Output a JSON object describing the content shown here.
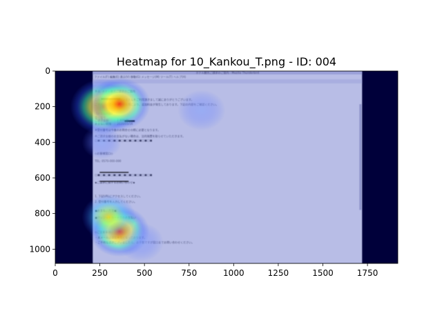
{
  "chart_data": {
    "type": "heatmap",
    "title": "Heatmap for 10_Kankou_T.png - ID: 004",
    "xlabel": "",
    "ylabel": "",
    "xlim": [
      0,
      1920
    ],
    "ylim": [
      1080,
      0
    ],
    "x_ticks": [
      0,
      250,
      500,
      750,
      1000,
      1250,
      1500,
      1750
    ],
    "y_ticks": [
      0,
      200,
      400,
      600,
      800,
      1000
    ],
    "grid": false,
    "colormap": "jet",
    "screenshot_extent": {
      "x": [
        210,
        1720
      ],
      "y": [
        0,
        1080
      ]
    },
    "hotspots": [
      {
        "x": 270,
        "y": 200,
        "intensity": 1.0
      },
      {
        "x": 360,
        "y": 185,
        "intensity": 0.9
      },
      {
        "x": 820,
        "y": 220,
        "intensity": 0.55
      },
      {
        "x": 360,
        "y": 900,
        "intensity": 0.85
      },
      {
        "x": 300,
        "y": 820,
        "intensity": 0.7
      },
      {
        "x": 480,
        "y": 960,
        "intensity": 0.5
      },
      {
        "x": 260,
        "y": 400,
        "intensity": 0.35
      }
    ]
  },
  "screenshot": {
    "window_title": "ホテル観光ご請求のご案内 - Mozilla Thunderbird",
    "menu": "ファイル(F)  編集(E)  表示(V)  移動(G)  メッセージ(M)  ツール(T)  ヘルプ(H)",
    "subject": "件名: ホテル観光ご請求のご案内",
    "body_lines": [
      "このたびは弊社ご請求システムをご利用頂きまして誠にありがとうございます。",
      "ご予約の変更・キャンセル等により、追加料金が発生しております。下記の内容をご確認ください。",
      "【お支払内容】",
      "受付番号",
      "ご請求金額　　：2,800 円",
      "お支払い期限　：2020/05/16",
      "※受付番号は今後のお問合せの際に必要となります。",
      "※ご請求金額のお支払がない場合は、法的措置を取らせていただきます。",
      "□■□■□■□■□■□■□■□■□■□■□■",
      "◇お客様窓口◇",
      "TEL: 0570-000-000",
      "□■□■□■□■□■□■□■□■□■□■□■",
      "◆ご請求に関するお問い合わせ◆",
      "1. 下記URLにアクセスしてください。",
      "2. 受付番号を入力してください。",
      "■お支払い方法■",
      "■クレジットカードでのお支払い",
      "◇ご注意事項◇",
      "・本メールは送信専用となっております。",
      "・ご不明な点がございましたら、お手数ですが窓口までお問い合わせください。"
    ]
  }
}
